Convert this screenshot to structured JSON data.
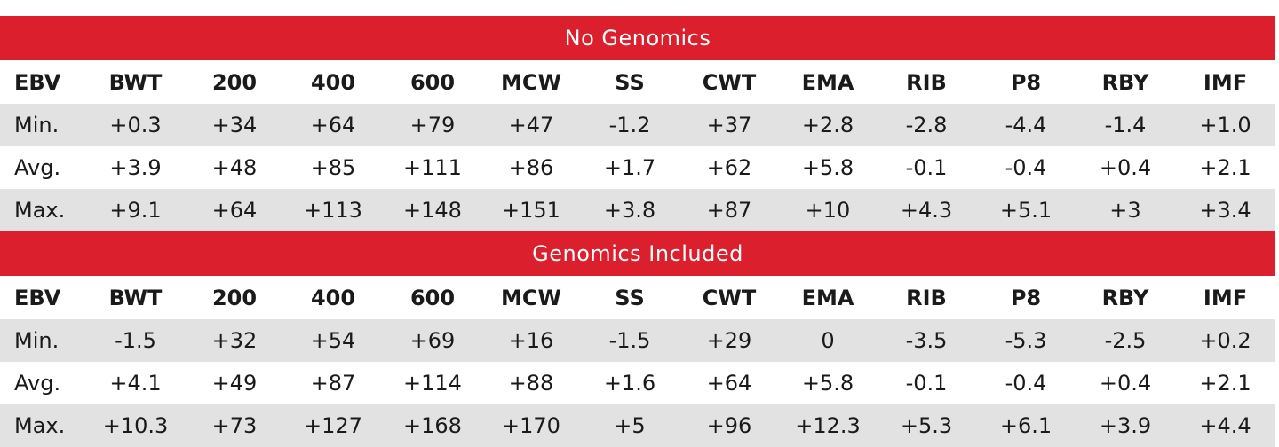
{
  "sections": [
    {
      "title": "No Genomics",
      "headers": [
        "EBV",
        "BWT",
        "200",
        "400",
        "600",
        "MCW",
        "SS",
        "CWT",
        "EMA",
        "RIB",
        "P8",
        "RBY",
        "IMF"
      ],
      "rows": [
        [
          "Min.",
          "+0.3",
          "+34",
          "+64",
          "+79",
          "+47",
          "-1.2",
          "+37",
          "+2.8",
          "-2.8",
          "-4.4",
          "-1.4",
          "+1.0"
        ],
        [
          "Avg.",
          "+3.9",
          "+48",
          "+85",
          "+111",
          "+86",
          "+1.7",
          "+62",
          "+5.8",
          "-0.1",
          "-0.4",
          "+0.4",
          "+2.1"
        ],
        [
          "Max.",
          "+9.1",
          "+64",
          "+113",
          "+148",
          "+151",
          "+3.8",
          "+87",
          "+10",
          "+4.3",
          "+5.1",
          "+3",
          "+3.4"
        ]
      ]
    },
    {
      "title": "Genomics Included",
      "headers": [
        "EBV",
        "BWT",
        "200",
        "400",
        "600",
        "MCW",
        "SS",
        "CWT",
        "EMA",
        "RIB",
        "P8",
        "RBY",
        "IMF"
      ],
      "rows": [
        [
          "Min.",
          "-1.5",
          "+32",
          "+54",
          "+69",
          "+16",
          "-1.5",
          "+29",
          "0",
          "-3.5",
          "-5.3",
          "-2.5",
          "+0.2"
        ],
        [
          "Avg.",
          "+4.1",
          "+49",
          "+87",
          "+114",
          "+88",
          "+1.6",
          "+64",
          "+5.8",
          "-0.1",
          "-0.4",
          "+0.4",
          "+2.1"
        ],
        [
          "Max.",
          "+10.3",
          "+73",
          "+127",
          "+168",
          "+170",
          "+5",
          "+96",
          "+12.3",
          "+5.3",
          "+6.1",
          "+3.9",
          "+4.4"
        ]
      ]
    }
  ],
  "colors": {
    "banner": "#dc1f2c",
    "banner_text": "#ffffff",
    "shaded_row": "#e2e2e2",
    "text": "#1a1a1a"
  }
}
